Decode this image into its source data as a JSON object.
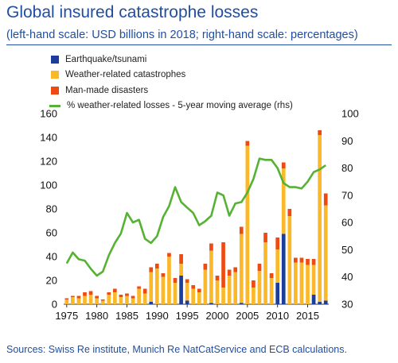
{
  "title": "Global insured catastrophe losses",
  "subtitle": "(left-hand scale: USD billions in 2018; right-hand scale: percentages)",
  "source": "Sources: Swiss Re institute, Munich Re NatCatService and ECB calculations.",
  "colors": {
    "earthquake": "#1b3d9b",
    "weather": "#fbb829",
    "manmade": "#f04a13",
    "line": "#55b233",
    "text": "#1f4ea3"
  },
  "chart_data": {
    "type": "bar",
    "stacked": true,
    "x": [
      1975,
      1976,
      1977,
      1978,
      1979,
      1980,
      1981,
      1982,
      1983,
      1984,
      1985,
      1986,
      1987,
      1988,
      1989,
      1990,
      1991,
      1992,
      1993,
      1994,
      1995,
      1996,
      1997,
      1998,
      1999,
      2000,
      2001,
      2002,
      2003,
      2004,
      2005,
      2006,
      2007,
      2008,
      2009,
      2010,
      2011,
      2012,
      2013,
      2014,
      2015,
      2016,
      2017,
      2018
    ],
    "x_ticks": [
      "1975",
      "1980",
      "1985",
      "1990",
      "1995",
      "2000",
      "2005",
      "2010",
      "2015"
    ],
    "series": [
      {
        "name": "Earthquake/tsunami",
        "axis": "left",
        "values": [
          0,
          0,
          0,
          0,
          0,
          0,
          0,
          0,
          0,
          0,
          0,
          0,
          0,
          0,
          2,
          0,
          0,
          0,
          0,
          24,
          3,
          0,
          0,
          0,
          1,
          0,
          0,
          0,
          0,
          1,
          0,
          0,
          0,
          0,
          0,
          18,
          59,
          0,
          0,
          0,
          0,
          8,
          2,
          3
        ]
      },
      {
        "name": "Weather-related catastrophes",
        "axis": "left",
        "values": [
          4,
          6,
          5,
          7,
          8,
          5,
          3,
          8,
          10,
          6,
          7,
          5,
          13,
          9,
          25,
          30,
          23,
          40,
          18,
          10,
          15,
          13,
          10,
          29,
          44,
          20,
          14,
          24,
          27,
          58,
          133,
          14,
          28,
          52,
          22,
          28,
          55,
          74,
          35,
          35,
          33,
          25,
          140,
          80
        ]
      },
      {
        "name": "Man-made disasters",
        "axis": "left",
        "values": [
          1,
          1,
          2,
          3,
          3,
          2,
          1,
          2,
          3,
          2,
          2,
          2,
          2,
          4,
          4,
          4,
          3,
          3,
          4,
          8,
          3,
          3,
          3,
          5,
          6,
          4,
          38,
          5,
          4,
          6,
          4,
          6,
          6,
          8,
          4,
          10,
          5,
          6,
          4,
          4,
          5,
          5,
          4,
          10
        ]
      },
      {
        "name": "% weather-related losses - 5-year moving average (rhs)",
        "axis": "right",
        "type": "line",
        "x": [
          1975,
          1976,
          1977,
          1978,
          1979,
          1980,
          1981,
          1982,
          1983,
          1984,
          1985,
          1986,
          1987,
          1988,
          1989,
          1990,
          1991,
          1992,
          1993,
          1994,
          1995,
          1996,
          1997,
          1998,
          1999,
          2000,
          2001,
          2002,
          2003,
          2004,
          2005,
          2006,
          2007,
          2008,
          2009,
          2010,
          2011,
          2012,
          2013,
          2014,
          2015,
          2016,
          2017,
          2018
        ],
        "values": [
          45,
          49,
          46.5,
          46,
          43,
          40.5,
          42,
          48,
          52.5,
          56,
          63.5,
          60,
          61,
          54,
          52.5,
          55,
          62,
          66,
          73,
          67.5,
          65.5,
          63.5,
          59,
          60.5,
          62.5,
          71,
          70,
          62.5,
          67,
          67.5,
          71,
          76,
          83.5,
          83,
          83,
          80,
          74.5,
          73,
          73,
          72.5,
          75,
          78.5,
          79.5,
          81
        ]
      }
    ],
    "y_left": {
      "min": 0,
      "max": 160,
      "ticks": [
        0,
        20,
        40,
        60,
        80,
        100,
        120,
        140,
        160
      ]
    },
    "y_right": {
      "min": 30,
      "max": 100,
      "ticks": [
        30,
        40,
        50,
        60,
        70,
        80,
        90,
        100
      ]
    },
    "legend_position": "top-left",
    "grid": false
  }
}
